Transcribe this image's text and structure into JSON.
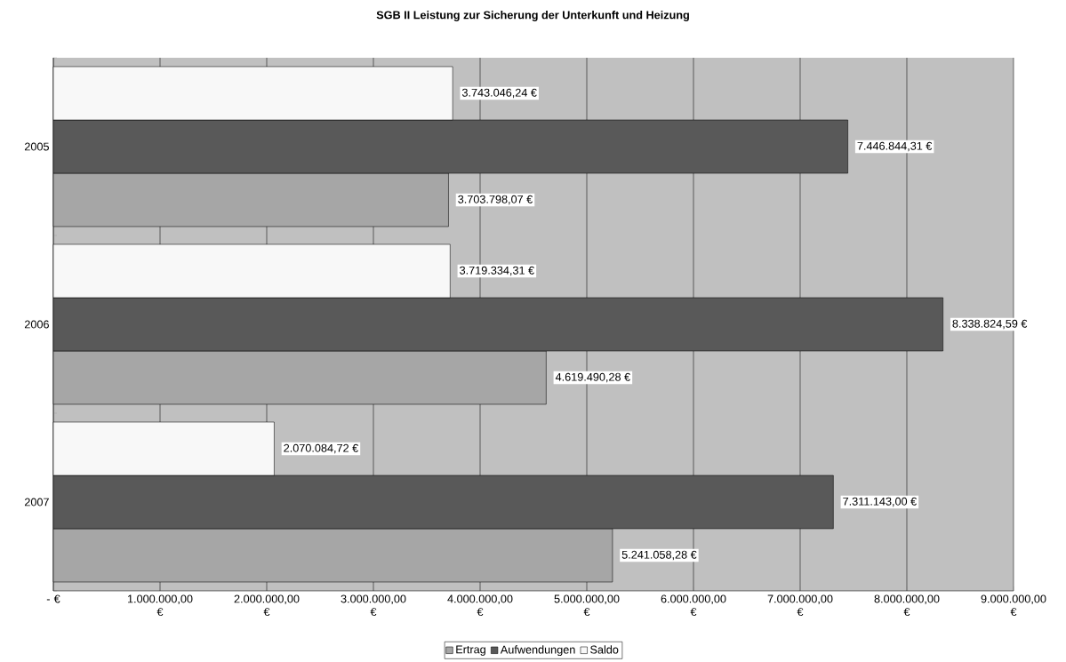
{
  "chart_data": {
    "type": "bar",
    "orientation": "horizontal",
    "title": "SGB II Leistung zur Sicherung der Unterkunft und Heizung",
    "categories": [
      "2005",
      "2006",
      "2007"
    ],
    "series": [
      {
        "name": "Ertrag",
        "color": "#a6a6a6",
        "values": [
          3703798.07,
          4619490.28,
          5241058.28
        ],
        "value_labels": [
          "3.703.798,07 €",
          "4.619.490,28 €",
          "5.241.058,28 €"
        ]
      },
      {
        "name": "Aufwendungen",
        "color": "#595959",
        "values": [
          7446844.31,
          8338824.59,
          7311143.0
        ],
        "value_labels": [
          "7.446.844,31 €",
          "8.338.824,59 €",
          "7.311.143,00 €"
        ]
      },
      {
        "name": "Saldo",
        "color": "#f8f8f8",
        "values": [
          3743046.24,
          3719334.31,
          2070084.72
        ],
        "value_labels": [
          "3.743.046,24 €",
          "3.719.334,31 €",
          "2.070.084,72 €"
        ]
      }
    ],
    "xlim": [
      0,
      9000000
    ],
    "xticks": [
      {
        "value": 0,
        "label": "-   €"
      },
      {
        "value": 1000000,
        "label": "1.000.000,00 €"
      },
      {
        "value": 2000000,
        "label": "2.000.000,00 €"
      },
      {
        "value": 3000000,
        "label": "3.000.000,00 €"
      },
      {
        "value": 4000000,
        "label": "4.000.000,00 €"
      },
      {
        "value": 5000000,
        "label": "5.000.000,00 €"
      },
      {
        "value": 6000000,
        "label": "6.000.000,00 €"
      },
      {
        "value": 7000000,
        "label": "7.000.000,00 €"
      },
      {
        "value": 8000000,
        "label": "8.000.000,00 €"
      },
      {
        "value": 9000000,
        "label": "9.000.000,00 €"
      }
    ],
    "grid": "x",
    "legend": "bottom"
  }
}
